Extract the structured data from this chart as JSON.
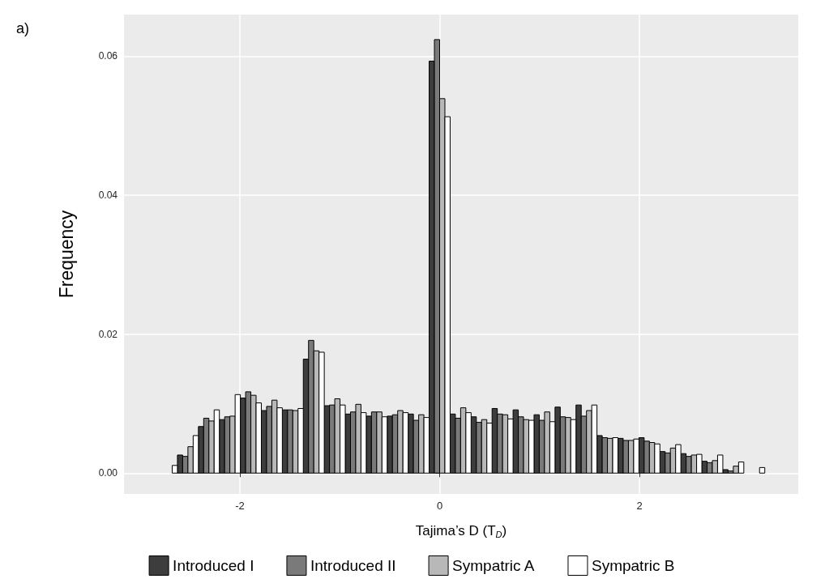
{
  "chart_data": {
    "type": "histogram",
    "xlabel": "Tajima’s D (T$_{D}$)",
    "ylabel": "Frequency",
    "annotations": [
      "a)"
    ],
    "bins": [
      -2.835,
      -2.625,
      -2.415,
      -2.205,
      -1.995,
      -1.785,
      -1.575,
      -1.365,
      -1.155,
      -0.945,
      -0.735,
      -0.525,
      -0.315,
      -0.105,
      0.105,
      0.315,
      0.525,
      0.735,
      0.945,
      1.155,
      1.365,
      1.575,
      1.785,
      1.995,
      2.205,
      2.415,
      2.625,
      2.835,
      3.045,
      3.255
    ],
    "series": [
      {
        "name": "Introduced I",
        "color": "#3d3d3d",
        "values": [
          0,
          0.0026,
          0.0067,
          0.0077,
          0.0108,
          0.009,
          0.0091,
          0.0164,
          0.0097,
          0.0085,
          0.0082,
          0.0082,
          0.0085,
          0.0593,
          0.0085,
          0.0081,
          0.0093,
          0.0091,
          0.0084,
          0.0095,
          0.0098,
          0.0054,
          0.005,
          0.0051,
          0.0031,
          0.0028,
          0.0017,
          0.0005,
          0
        ]
      },
      {
        "name": "Introduced II",
        "color": "#7a7a7a",
        "values": [
          0,
          0.0024,
          0.0079,
          0.0081,
          0.0117,
          0.0096,
          0.0091,
          0.0191,
          0.0098,
          0.0088,
          0.0088,
          0.0084,
          0.0076,
          0.0624,
          0.0079,
          0.0073,
          0.0085,
          0.0081,
          0.0076,
          0.0081,
          0.0082,
          0.0051,
          0.0047,
          0.0046,
          0.0029,
          0.0024,
          0.0015,
          0.0003,
          0
        ]
      },
      {
        "name": "Sympatric A",
        "color": "#b8b8b8",
        "values": [
          0,
          0.0038,
          0.0075,
          0.0082,
          0.0112,
          0.0105,
          0.009,
          0.0176,
          0.0107,
          0.0099,
          0.0088,
          0.009,
          0.0084,
          0.0539,
          0.0094,
          0.0077,
          0.0084,
          0.0077,
          0.0088,
          0.008,
          0.009,
          0.005,
          0.0047,
          0.0044,
          0.0036,
          0.0026,
          0.0018,
          0.001,
          0
        ]
      },
      {
        "name": "Sympatric B",
        "color": "#ffffff",
        "values": [
          0.0011,
          0.0054,
          0.0091,
          0.0113,
          0.0101,
          0.0094,
          0.0093,
          0.0174,
          0.0098,
          0.0087,
          0.0081,
          0.0087,
          0.008,
          0.0513,
          0.0087,
          0.0072,
          0.0078,
          0.0076,
          0.0074,
          0.0077,
          0.0098,
          0.0051,
          0.0049,
          0.0042,
          0.0041,
          0.0027,
          0.0026,
          0.0016,
          0.0008
        ]
      }
    ],
    "xlim": [
      -3.16,
      3.59
    ],
    "xticks": [
      -2,
      0,
      2
    ],
    "ylim": [
      -0.003,
      0.066
    ],
    "yticks": [
      {
        "value": 0,
        "label": "0.00"
      },
      {
        "value": 0.02,
        "label": "0.02"
      },
      {
        "value": 0.04,
        "label": "0.04"
      },
      {
        "value": 0.06,
        "label": "0.06"
      }
    ],
    "grid": true,
    "legend": "bottom"
  }
}
